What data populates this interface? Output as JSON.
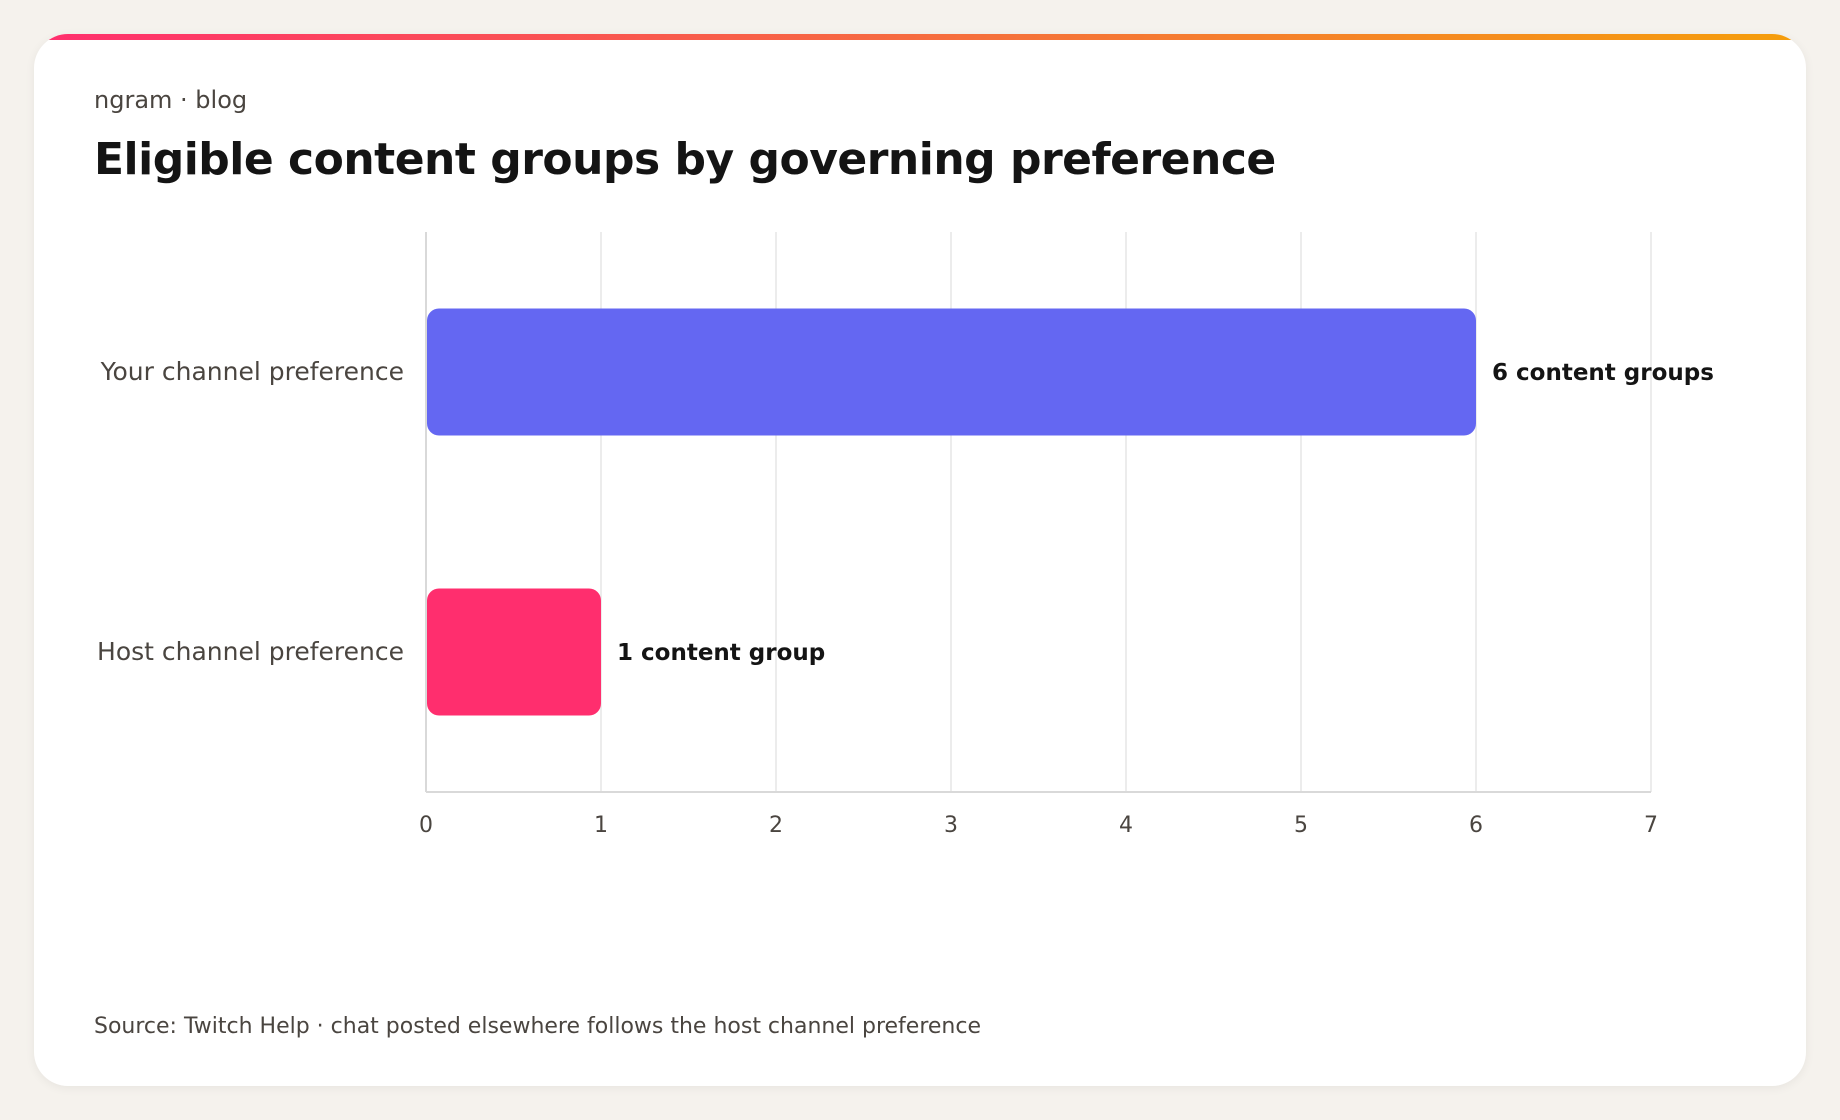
{
  "header": {
    "eyebrow": "ngram · blog",
    "title": "Eligible content groups by governing preference"
  },
  "footer": {
    "source": "Source: Twitch Help · chat posted elsewhere follows the host channel preference"
  },
  "colors": {
    "accent_start": "#ff2e6e",
    "accent_mid": "#f5713a",
    "accent_end": "#f59e0b",
    "gridline": "#ececec",
    "axis": "#d9d9d9"
  },
  "chart_data": {
    "type": "bar",
    "orientation": "horizontal",
    "title": "Eligible content groups by governing preference",
    "xlabel": "",
    "ylabel": "",
    "xlim": [
      0,
      7
    ],
    "xticks": [
      0,
      1,
      2,
      3,
      4,
      5,
      6,
      7
    ],
    "grid": true,
    "categories": [
      "Your channel preference",
      "Host channel preference"
    ],
    "values": [
      6,
      1
    ],
    "data_labels": [
      "6 content groups",
      "1 content group"
    ],
    "bar_colors": [
      "#6467f2",
      "#ff2e6e"
    ]
  }
}
